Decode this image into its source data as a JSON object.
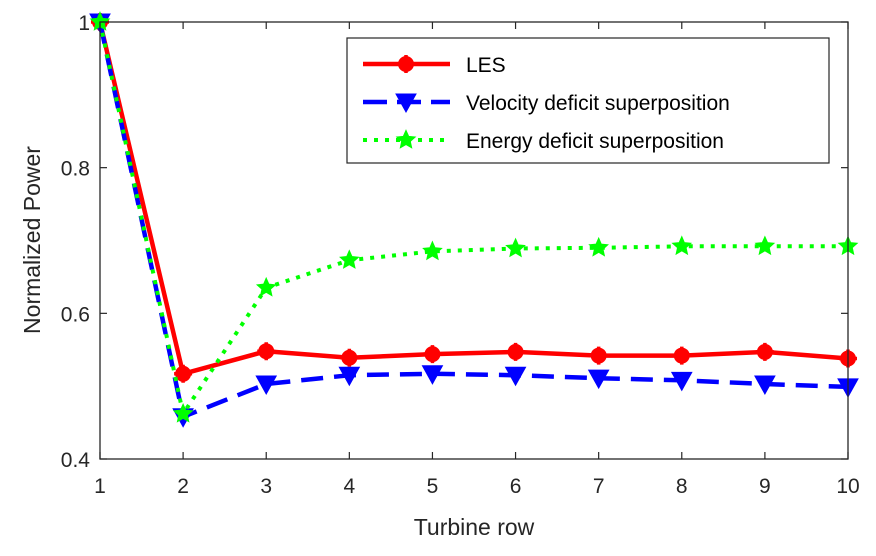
{
  "chart_data": {
    "type": "line",
    "title": "",
    "xlabel": "Turbine row",
    "ylabel": "Normalized Power",
    "x": [
      1,
      2,
      3,
      4,
      5,
      6,
      7,
      8,
      9,
      10
    ],
    "xlim": [
      1,
      10
    ],
    "ylim": [
      0.4,
      1.0
    ],
    "xticks": [
      "1",
      "2",
      "3",
      "4",
      "5",
      "6",
      "7",
      "8",
      "9",
      "10"
    ],
    "yticks": [
      "0.4",
      "0.6",
      "0.8",
      "1"
    ],
    "ytick_values": [
      0.4,
      0.6,
      0.8,
      1.0
    ],
    "grid": false,
    "legend_position": "top-right",
    "series": [
      {
        "name": "LES",
        "color": "#ff0000",
        "line_style": "solid",
        "marker": "circle-cross",
        "values": [
          1.0,
          0.517,
          0.548,
          0.539,
          0.544,
          0.547,
          0.542,
          0.542,
          0.547,
          0.538
        ]
      },
      {
        "name": "Velocity deficit superposition",
        "color": "#0000ff",
        "line_style": "dashed",
        "marker": "triangle-down",
        "values": [
          1.0,
          0.458,
          0.503,
          0.515,
          0.517,
          0.515,
          0.511,
          0.508,
          0.503,
          0.499
        ]
      },
      {
        "name": "Energy deficit superposition",
        "color": "#00ff00",
        "line_style": "dotted",
        "marker": "star",
        "values": [
          1.0,
          0.462,
          0.635,
          0.673,
          0.685,
          0.689,
          0.69,
          0.692,
          0.692,
          0.692
        ]
      }
    ]
  }
}
